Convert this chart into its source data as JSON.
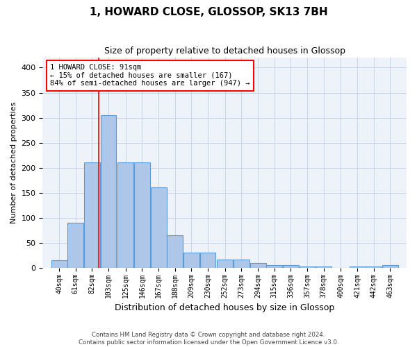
{
  "title": "1, HOWARD CLOSE, GLOSSOP, SK13 7BH",
  "subtitle": "Size of property relative to detached houses in Glossop",
  "xlabel": "Distribution of detached houses by size in Glossop",
  "ylabel": "Number of detached properties",
  "footer_line1": "Contains HM Land Registry data © Crown copyright and database right 2024.",
  "footer_line2": "Contains public sector information licensed under the Open Government Licence v3.0.",
  "bar_labels": [
    "40sqm",
    "61sqm",
    "82sqm",
    "103sqm",
    "125sqm",
    "146sqm",
    "167sqm",
    "188sqm",
    "209sqm",
    "230sqm",
    "252sqm",
    "273sqm",
    "294sqm",
    "315sqm",
    "336sqm",
    "357sqm",
    "378sqm",
    "400sqm",
    "421sqm",
    "442sqm",
    "463sqm"
  ],
  "bar_values": [
    15,
    90,
    210,
    305,
    210,
    210,
    160,
    65,
    30,
    30,
    17,
    17,
    10,
    5,
    5,
    3,
    3,
    0,
    3,
    3,
    5
  ],
  "bar_color": "#aec6e8",
  "bar_edge_color": "#5b9bd5",
  "bar_edge_width": 0.8,
  "grid_color": "#c8d4e8",
  "bg_color": "#eef2f9",
  "annotation_text": "1 HOWARD CLOSE: 91sqm\n← 15% of detached houses are smaller (167)\n84% of semi-detached houses are larger (947) →",
  "annotation_box_color": "white",
  "annotation_box_edge": "red",
  "red_line_x": 91,
  "ylim": [
    0,
    420
  ],
  "bin_width": 21,
  "property_size": 91,
  "figsize": [
    6.0,
    5.0
  ],
  "dpi": 100
}
